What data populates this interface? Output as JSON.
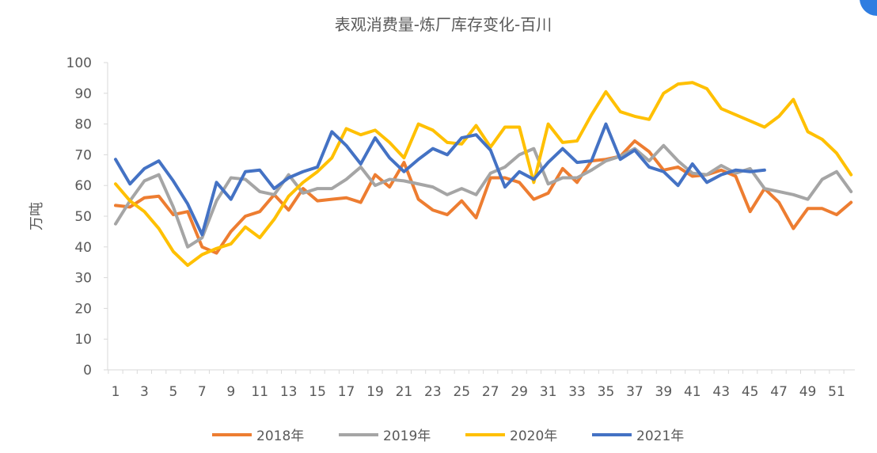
{
  "chart_data": {
    "type": "line",
    "title": "表观消费量-炼厂库存变化-百川",
    "xlabel": "",
    "ylabel": "万吨",
    "ylim": [
      0,
      100
    ],
    "yticks": [
      0,
      10,
      20,
      30,
      40,
      50,
      60,
      70,
      80,
      90,
      100
    ],
    "xticks": [
      1,
      3,
      5,
      7,
      9,
      11,
      13,
      15,
      17,
      19,
      21,
      23,
      25,
      27,
      29,
      31,
      33,
      35,
      37,
      39,
      41,
      43,
      45,
      47,
      49,
      51
    ],
    "x_range": [
      1,
      52
    ],
    "grid": false,
    "legend_position": "bottom",
    "series": [
      {
        "name": "2018年",
        "color": "#ed7d31",
        "values": [
          53.5,
          53,
          56,
          56.5,
          50.5,
          51.5,
          40,
          38,
          45,
          50,
          51.5,
          57,
          52,
          59,
          55,
          55.5,
          56,
          54.5,
          63.5,
          59.5,
          67.5,
          55.5,
          52,
          50.5,
          55,
          49.5,
          62.5,
          62.5,
          61,
          55.5,
          57.5,
          65.5,
          61,
          68,
          68.5,
          69.5,
          74.5,
          71,
          65,
          66,
          63,
          63.5,
          65,
          63,
          51.5,
          59,
          54.5,
          46,
          52.5,
          52.5,
          50.5,
          54.5
        ]
      },
      {
        "name": "2019年",
        "color": "#a5a5a5",
        "values": [
          47.5,
          55,
          61.5,
          63.5,
          53,
          40,
          43,
          55,
          62.5,
          62,
          58,
          57,
          63.5,
          57.5,
          59,
          59,
          62,
          66,
          60,
          62,
          61.5,
          60.5,
          59.5,
          57,
          59,
          57,
          64,
          66,
          70,
          72,
          60.5,
          62.5,
          62.5,
          65,
          68,
          69.5,
          72,
          68,
          73,
          68,
          64,
          63.5,
          66.5,
          64,
          65.5,
          59,
          58,
          57,
          55.5,
          62,
          64.5,
          58
        ]
      },
      {
        "name": "2020年",
        "color": "#ffc000",
        "values": [
          60.5,
          55,
          51.5,
          46,
          38.5,
          34,
          37.5,
          39.5,
          41,
          46.5,
          43,
          49,
          56.5,
          61,
          64.5,
          69,
          78.5,
          76.5,
          78,
          74,
          69,
          80,
          78,
          74,
          73.5,
          79.5,
          72.5,
          79,
          79,
          61,
          80,
          74,
          74.5,
          83,
          90.5,
          84,
          82.5,
          81.5,
          90,
          93,
          93.5,
          91.5,
          85,
          83,
          81,
          79,
          82.5,
          88,
          77.5,
          75,
          70.5,
          63.5
        ]
      },
      {
        "name": "2021年",
        "color": "#4472c4",
        "values": [
          68.5,
          60.5,
          65.5,
          68,
          61.5,
          54,
          44,
          61,
          55.5,
          64.5,
          65,
          59,
          62.5,
          64.5,
          66,
          77.5,
          73,
          67,
          75.5,
          69,
          64.5,
          68.5,
          72,
          70,
          75.5,
          76.5,
          71.5,
          59.5,
          64.5,
          62,
          67.5,
          72,
          67.5,
          68,
          80,
          68.5,
          71.5,
          66,
          64.5,
          60,
          67,
          61,
          63.5,
          65,
          64.5,
          65
        ]
      }
    ]
  }
}
